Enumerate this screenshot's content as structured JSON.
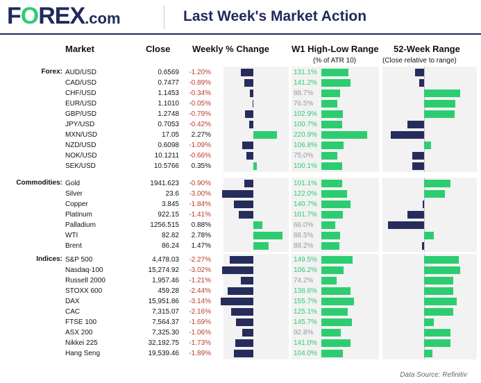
{
  "header": {
    "logo_pre": "F",
    "logo_o": "O",
    "logo_post": "REX",
    "logo_dotcom": ".com",
    "title": "Last Week's Market Action"
  },
  "columns": {
    "market": "Market",
    "close": "Close",
    "weekly": "Weekly % Change",
    "range": "W1 High-Low Range",
    "range_sub": "(% of ATR 10)",
    "w52": "52-Week Range",
    "w52_sub": "(Close relative to range)"
  },
  "source": "Data Source: Refinitiv",
  "colors": {
    "navy": "#262c5c",
    "green": "#2ecc71",
    "red": "#c0392b",
    "grey_label": "#9a9a9a"
  },
  "chart_data": {
    "type": "table",
    "groups": [
      {
        "label": "Forex:",
        "rows": [
          {
            "market": "AUD/USD",
            "close": "0.6569",
            "change": "-1.20%",
            "change_value": -1.2,
            "atr": "131.1%",
            "atr_value": 131.1,
            "atr_dim": false,
            "w52_value": -0.25
          },
          {
            "market": "CAD/USD",
            "close": "0.7477",
            "change": "-0.89%",
            "change_value": -0.89,
            "atr": "141.2%",
            "atr_value": 141.2,
            "atr_dim": false,
            "w52_value": -0.13
          },
          {
            "market": "CHF/USD",
            "close": "1.1453",
            "change": "-0.34%",
            "change_value": -0.34,
            "atr": "88.7%",
            "atr_value": 88.7,
            "atr_dim": true,
            "w52_value": 1.0
          },
          {
            "market": "EUR/USD",
            "close": "1.1010",
            "change": "-0.05%",
            "change_value": -0.05,
            "atr": "76.5%",
            "atr_value": 76.5,
            "atr_dim": true,
            "w52_value": 0.87
          },
          {
            "market": "GBP/USD",
            "close": "1.2748",
            "change": "-0.79%",
            "change_value": -0.79,
            "atr": "102.9%",
            "atr_value": 102.9,
            "atr_dim": false,
            "w52_value": 0.85
          },
          {
            "market": "JPY/USD",
            "close": "0.7053",
            "change": "-0.42%",
            "change_value": -0.42,
            "atr": "100.7%",
            "atr_value": 100.7,
            "atr_dim": false,
            "w52_value": -0.47
          },
          {
            "market": "MXN/USD",
            "close": "17.05",
            "change": "2.27%",
            "change_value": 2.27,
            "atr": "220.9%",
            "atr_value": 220.9,
            "atr_dim": false,
            "w52_value": -0.93
          },
          {
            "market": "NZD/USD",
            "close": "0.6098",
            "change": "-1.09%",
            "change_value": -1.09,
            "atr": "106.8%",
            "atr_value": 106.8,
            "atr_dim": false,
            "w52_value": 0.2
          },
          {
            "market": "NOK/USD",
            "close": "10.1211",
            "change": "-0.66%",
            "change_value": -0.66,
            "atr": "75.0%",
            "atr_value": 75.0,
            "atr_dim": true,
            "w52_value": -0.33
          },
          {
            "market": "SEK/USD",
            "close": "10.5766",
            "change": "0.35%",
            "change_value": 0.35,
            "atr": "100.1%",
            "atr_value": 100.1,
            "atr_dim": false,
            "w52_value": -0.32
          }
        ]
      },
      {
        "label": "Commodities:",
        "rows": [
          {
            "market": "Gold",
            "close": "1941.623",
            "change": "-0.90%",
            "change_value": -0.9,
            "atr": "101.1%",
            "atr_value": 101.1,
            "atr_dim": false,
            "w52_value": 0.73
          },
          {
            "market": "Silver",
            "close": "23.6",
            "change": "-3.00%",
            "change_value": -3.0,
            "atr": "122.0%",
            "atr_value": 122.0,
            "atr_dim": false,
            "w52_value": 0.57
          },
          {
            "market": "Copper",
            "close": "3.845",
            "change": "-1.84%",
            "change_value": -1.84,
            "atr": "140.7%",
            "atr_value": 140.7,
            "atr_dim": false,
            "w52_value": -0.03
          },
          {
            "market": "Platinum",
            "close": "922.15",
            "change": "-1.41%",
            "change_value": -1.41,
            "atr": "101.7%",
            "atr_value": 101.7,
            "atr_dim": false,
            "w52_value": -0.47
          },
          {
            "market": "Palladium",
            "close": "1256.515",
            "change": "0.88%",
            "change_value": 0.88,
            "atr": "66.0%",
            "atr_value": 66.0,
            "atr_dim": true,
            "w52_value": -1.0
          },
          {
            "market": "WTI",
            "close": "82.82",
            "change": "2.78%",
            "change_value": 2.78,
            "atr": "88.5%",
            "atr_value": 88.5,
            "atr_dim": true,
            "w52_value": 0.27
          },
          {
            "market": "Brent",
            "close": "86.24",
            "change": "1.47%",
            "change_value": 1.47,
            "atr": "88.2%",
            "atr_value": 88.2,
            "atr_dim": true,
            "w52_value": -0.05
          }
        ]
      },
      {
        "label": "Indices:",
        "rows": [
          {
            "market": "S&P 500",
            "close": "4,478.03",
            "change": "-2.27%",
            "change_value": -2.27,
            "atr": "149.5%",
            "atr_value": 149.5,
            "atr_dim": false,
            "w52_value": 0.97
          },
          {
            "market": "Nasdaq-100",
            "close": "15,274.92",
            "change": "-3.02%",
            "change_value": -3.02,
            "atr": "106.2%",
            "atr_value": 106.2,
            "atr_dim": false,
            "w52_value": 1.0
          },
          {
            "market": "Russell 2000",
            "close": "1,957.46",
            "change": "-1.21%",
            "change_value": -1.21,
            "atr": "74.2%",
            "atr_value": 74.2,
            "atr_dim": true,
            "w52_value": 0.8
          },
          {
            "market": "STOXX 600",
            "close": "459.28",
            "change": "-2.44%",
            "change_value": -2.44,
            "atr": "138.6%",
            "atr_value": 138.6,
            "atr_dim": false,
            "w52_value": 0.8
          },
          {
            "market": "DAX",
            "close": "15,951.86",
            "change": "-3.14%",
            "change_value": -3.14,
            "atr": "155.7%",
            "atr_value": 155.7,
            "atr_dim": false,
            "w52_value": 0.9
          },
          {
            "market": "CAC",
            "close": "7,315.07",
            "change": "-2.16%",
            "change_value": -2.16,
            "atr": "125.1%",
            "atr_value": 125.1,
            "atr_dim": false,
            "w52_value": 0.8
          },
          {
            "market": "FTSE 100",
            "close": "7,564.37",
            "change": "-1.69%",
            "change_value": -1.69,
            "atr": "145.7%",
            "atr_value": 145.7,
            "atr_dim": false,
            "w52_value": 0.27
          },
          {
            "market": "ASX 200",
            "close": "7,325.30",
            "change": "-1.06%",
            "change_value": -1.06,
            "atr": "92.8%",
            "atr_value": 92.8,
            "atr_dim": true,
            "w52_value": 0.73
          },
          {
            "market": "Nikkei 225",
            "close": "32,192.75",
            "change": "-1.73%",
            "change_value": -1.73,
            "atr": "141.0%",
            "atr_value": 141.0,
            "atr_dim": false,
            "w52_value": 0.73
          },
          {
            "market": "Hang Seng",
            "close": "19,539.46",
            "change": "-1.89%",
            "change_value": -1.89,
            "atr": "104.0%",
            "atr_value": 104.0,
            "atr_dim": false,
            "w52_value": 0.23
          }
        ]
      }
    ]
  }
}
